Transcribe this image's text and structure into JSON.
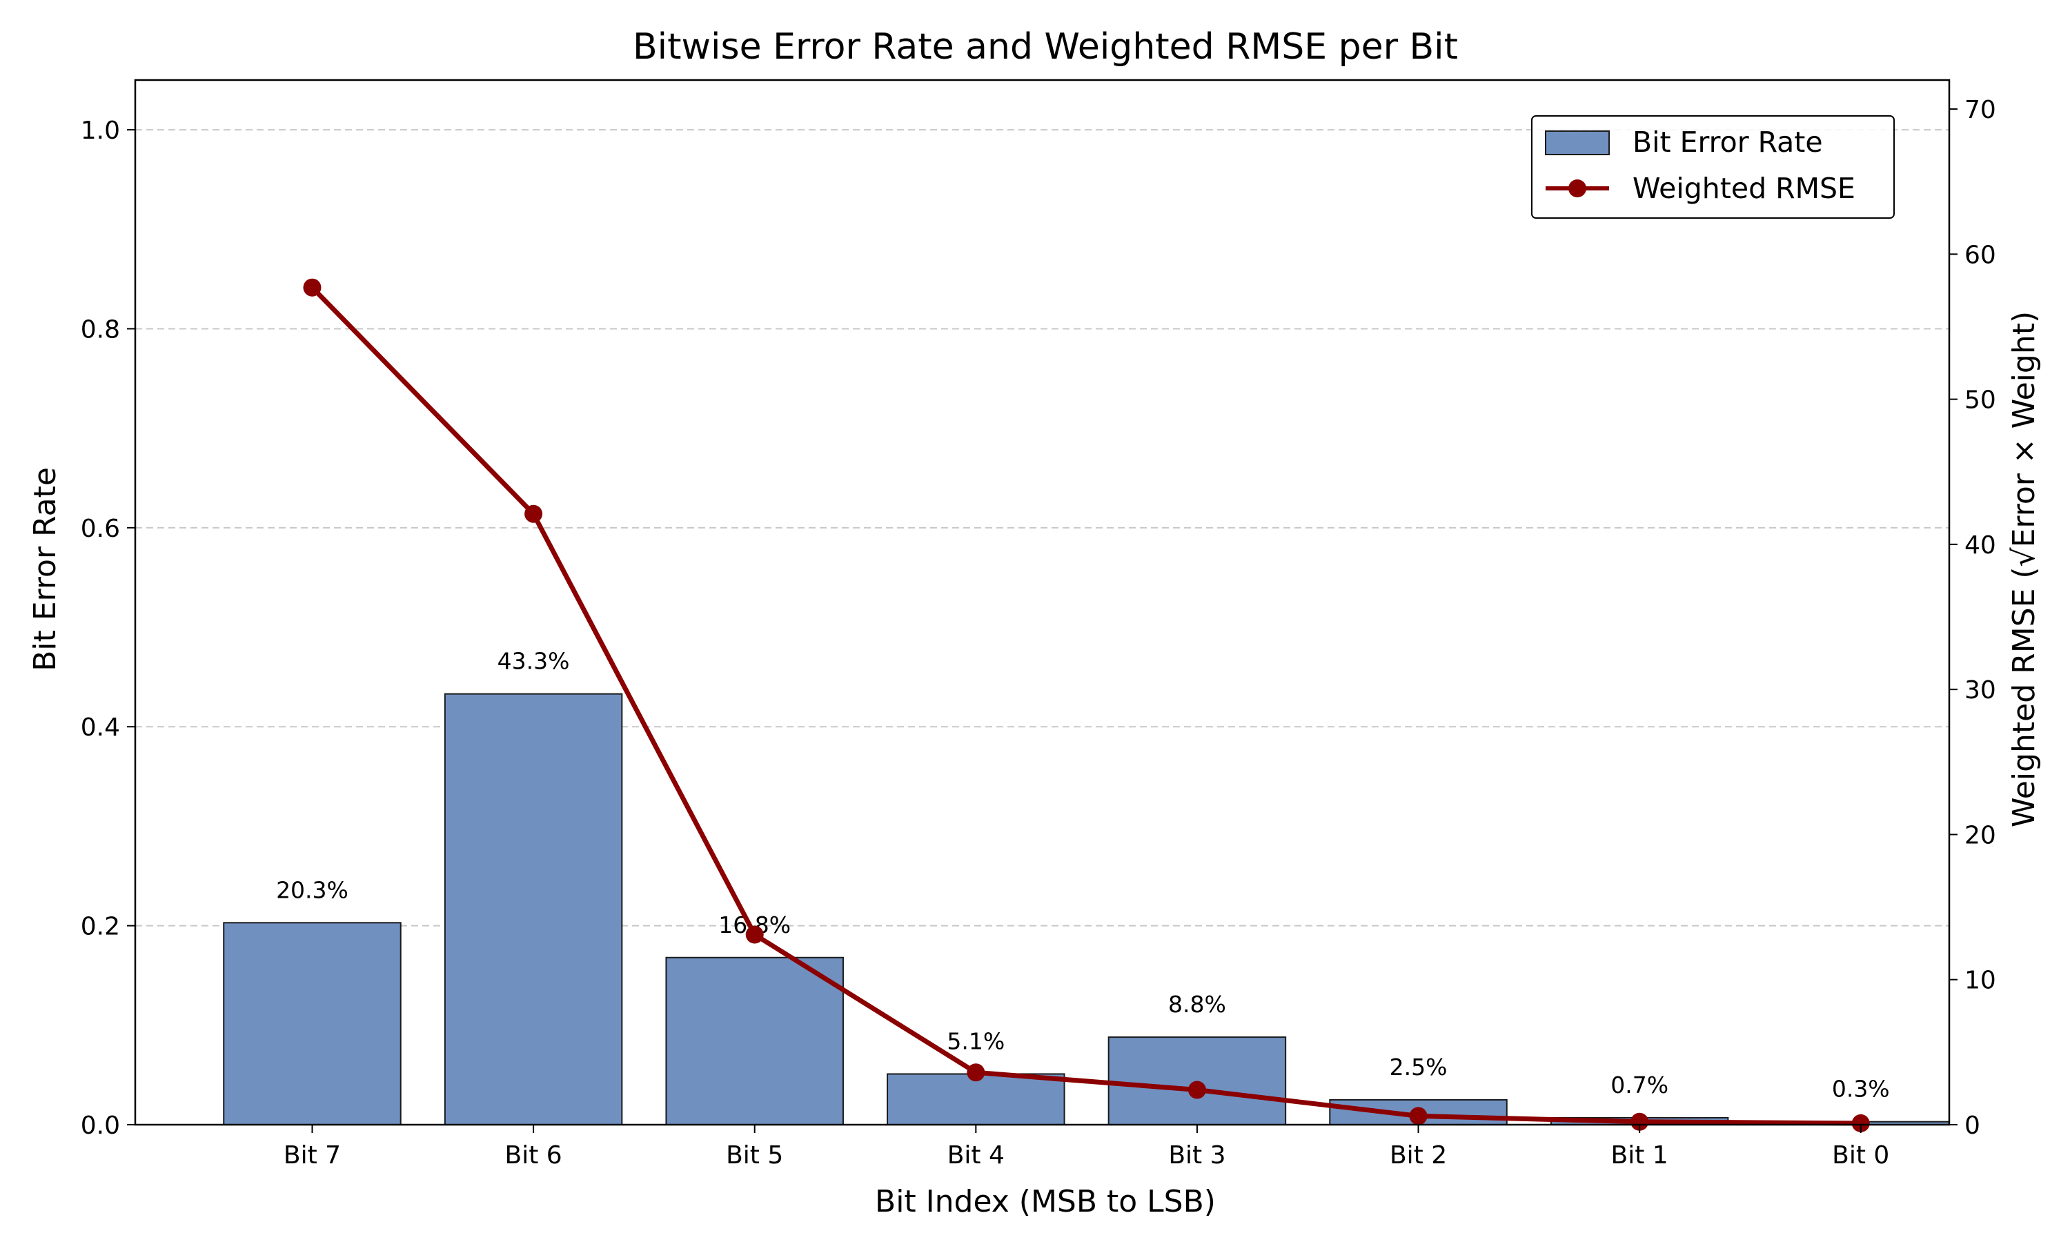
{
  "chart_data": {
    "type": "bar",
    "title": "Bitwise Error Rate and Weighted RMSE per Bit",
    "xlabel": "Bit Index (MSB to LSB)",
    "ylabel": "Bit Error Rate",
    "y2label": "Weighted RMSE (√Error × Weight)",
    "categories": [
      "Bit 7",
      "Bit 6",
      "Bit 5",
      "Bit 4",
      "Bit 3",
      "Bit 2",
      "Bit 1",
      "Bit 0"
    ],
    "ylim": [
      0,
      1.05
    ],
    "y2lim": [
      0,
      72
    ],
    "yticks": [
      "0.0",
      "0.2",
      "0.4",
      "0.6",
      "0.8",
      "1.0"
    ],
    "y2ticks": [
      "0",
      "10",
      "20",
      "30",
      "40",
      "50",
      "60",
      "70"
    ],
    "grid": "horizontal dashed",
    "legend_position": "top-right",
    "series": [
      {
        "name": "Bit Error Rate",
        "kind": "bar",
        "axis": "left",
        "color": "#7090c0",
        "values": [
          0.203,
          0.433,
          0.168,
          0.051,
          0.088,
          0.025,
          0.007,
          0.003
        ],
        "labels": [
          "20.3%",
          "43.3%",
          "16.8%",
          "5.1%",
          "8.8%",
          "2.5%",
          "0.7%",
          "0.3%"
        ]
      },
      {
        "name": "Weighted RMSE",
        "kind": "line",
        "axis": "right",
        "color": "#8b0000",
        "values": [
          57.7,
          42.1,
          13.1,
          3.6,
          2.4,
          0.6,
          0.2,
          0.1
        ]
      }
    ]
  }
}
